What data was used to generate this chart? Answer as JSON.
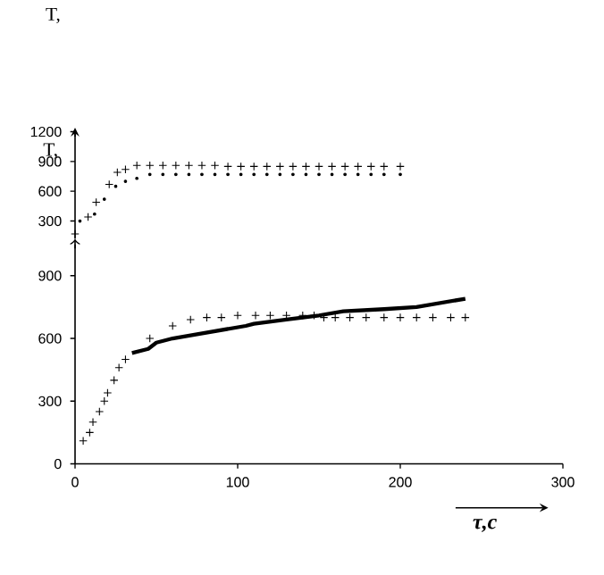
{
  "chart_data": [
    {
      "type": "scatter",
      "title": "T,",
      "ylabel": "T,",
      "xlim": [
        0,
        300
      ],
      "ylim": [
        120,
        1200
      ],
      "yticks": [
        300,
        600,
        900,
        1200
      ],
      "tick_labels": "y",
      "series": [
        {
          "color": "#000000",
          "marker": "cross",
          "x": [
            0,
            8,
            13,
            21,
            26,
            31,
            38,
            46,
            54,
            62,
            70,
            78,
            86,
            94,
            102,
            110,
            118,
            126,
            134,
            142,
            150,
            158,
            166,
            174,
            182,
            190,
            200
          ],
          "values": [
            170,
            340,
            490,
            670,
            790,
            820,
            860,
            860,
            860,
            860,
            860,
            860,
            860,
            850,
            850,
            850,
            850,
            850,
            850,
            850,
            850,
            850,
            850,
            850,
            850,
            850,
            850
          ]
        },
        {
          "color": "#000000",
          "marker": "circle",
          "x": [
            3,
            12,
            18,
            25,
            31,
            38,
            46,
            54,
            62,
            70,
            78,
            86,
            94,
            102,
            110,
            118,
            126,
            134,
            142,
            150,
            158,
            166,
            174,
            182,
            190,
            200
          ],
          "values": [
            300,
            370,
            520,
            650,
            700,
            730,
            770,
            770,
            770,
            770,
            770,
            770,
            770,
            770,
            770,
            770,
            770,
            770,
            770,
            770,
            770,
            770,
            770,
            770,
            770,
            770
          ]
        }
      ]
    },
    {
      "type": "line",
      "xlabel": "τ,c",
      "xlim": [
        0,
        300
      ],
      "ylim": [
        0,
        1050
      ],
      "xticks": [
        0,
        100,
        200,
        300
      ],
      "yticks": [
        0,
        300,
        600,
        900
      ],
      "series": [
        {
          "color": "#000000",
          "marker": "none",
          "x": [
            35,
            45,
            50,
            60,
            75,
            90,
            105,
            110,
            130,
            150,
            165,
            190,
            210,
            225,
            240
          ],
          "values": [
            530,
            550,
            580,
            600,
            620,
            640,
            660,
            670,
            690,
            710,
            730,
            740,
            750,
            770,
            790
          ]
        },
        {
          "type": "scatter",
          "color": "#000000",
          "marker": "cross",
          "x": [
            5,
            9,
            11,
            15,
            18,
            20,
            24,
            27,
            31,
            46,
            60,
            71,
            81,
            90,
            100,
            111,
            120,
            130,
            140,
            147,
            153,
            160,
            169,
            179,
            190,
            200,
            210,
            220,
            231,
            240
          ],
          "values": [
            110,
            150,
            200,
            250,
            300,
            340,
            400,
            460,
            500,
            600,
            660,
            690,
            700,
            700,
            710,
            710,
            710,
            710,
            710,
            710,
            700,
            700,
            700,
            700,
            700,
            700,
            700,
            700,
            700,
            700
          ]
        }
      ]
    }
  ]
}
